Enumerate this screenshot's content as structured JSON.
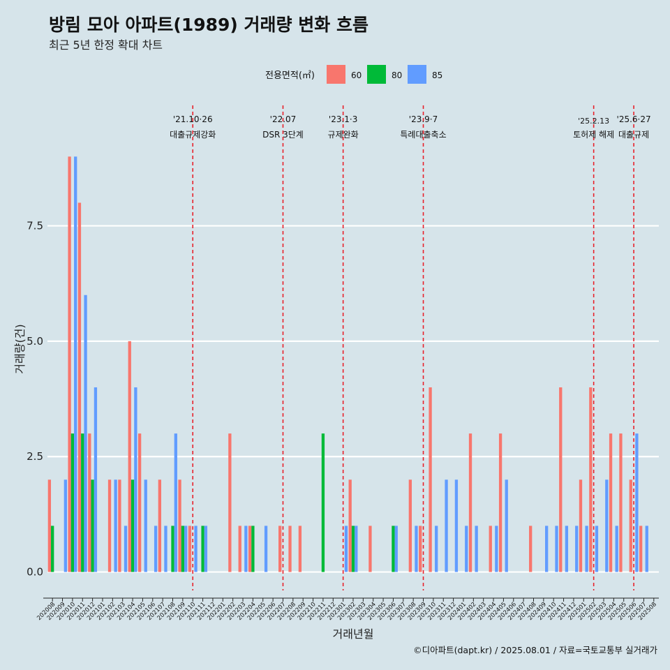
{
  "chart_data": {
    "type": "bar",
    "title": "방림 모아 아파트(1989) 거래량 변화 흐름",
    "subtitle": "최근 5년 한정 확대 차트",
    "xlabel": "거래년월",
    "ylabel": "거래량(건)",
    "ylim": [
      -0.4,
      10.2
    ],
    "yticks": [
      0.0,
      2.5,
      5.0,
      7.5
    ],
    "ytick_labels": [
      "0.0",
      "2.5",
      "5.0",
      "7.5"
    ],
    "legend": {
      "title": "전용면적(㎡)",
      "position": "top",
      "entries": [
        {
          "label": "60",
          "color": "#f8766d"
        },
        {
          "label": "80",
          "color": "#00ba38"
        },
        {
          "label": "85",
          "color": "#619cff"
        }
      ]
    },
    "categories": [
      "202008",
      "202009",
      "202010",
      "202011",
      "202012",
      "202101",
      "202102",
      "202103",
      "202104",
      "202105",
      "202106",
      "202107",
      "202108",
      "202109",
      "202110",
      "202111",
      "202112",
      "202201",
      "202202",
      "202203",
      "202204",
      "202205",
      "202206",
      "202207",
      "202208",
      "202209",
      "202210",
      "202211",
      "202212",
      "202301",
      "202302",
      "202303",
      "202304",
      "202305",
      "202306",
      "202307",
      "202308",
      "202309",
      "202310",
      "202311",
      "202312",
      "202401",
      "202402",
      "202403",
      "202404",
      "202405",
      "202406",
      "202407",
      "202408",
      "202409",
      "202410",
      "202411",
      "202412",
      "202501",
      "202502",
      "202503",
      "202504",
      "202505",
      "202506",
      "202507",
      "202508"
    ],
    "series": [
      {
        "name": "60",
        "values": [
          2,
          0,
          9,
          8,
          3,
          0,
          2,
          2,
          5,
          3,
          0,
          2,
          0,
          2,
          1,
          0,
          0,
          0,
          3,
          1,
          1,
          0,
          0,
          1,
          1,
          1,
          0,
          0,
          0,
          0,
          2,
          0,
          1,
          0,
          0,
          0,
          2,
          1,
          4,
          0,
          0,
          0,
          3,
          0,
          1,
          3,
          0,
          0,
          1,
          0,
          0,
          4,
          0,
          2,
          4,
          0,
          3,
          3,
          2,
          1,
          0
        ]
      },
      {
        "name": "80",
        "values": [
          1,
          0,
          3,
          3,
          2,
          0,
          0,
          0,
          2,
          0,
          0,
          0,
          1,
          1,
          0,
          1,
          0,
          0,
          0,
          0,
          1,
          0,
          0,
          0,
          0,
          0,
          0,
          3,
          0,
          0,
          1,
          0,
          0,
          0,
          1,
          0,
          0,
          0,
          0,
          0,
          0,
          0,
          0,
          0,
          0,
          0,
          0,
          0,
          0,
          0,
          0,
          0,
          0,
          0,
          0,
          0,
          0,
          0,
          0,
          0,
          0
        ]
      },
      {
        "name": "85",
        "values": [
          0,
          2,
          9,
          6,
          4,
          0,
          2,
          1,
          4,
          2,
          1,
          1,
          3,
          1,
          1,
          1,
          0,
          0,
          0,
          1,
          0,
          1,
          0,
          0,
          0,
          0,
          0,
          0,
          0,
          1,
          1,
          0,
          0,
          0,
          1,
          0,
          1,
          0,
          1,
          2,
          2,
          1,
          1,
          0,
          1,
          2,
          0,
          0,
          0,
          1,
          1,
          1,
          1,
          1,
          1,
          2,
          1,
          0,
          3,
          1,
          0
        ]
      }
    ],
    "events": [
      {
        "date": "202110",
        "date_label": "'21.10·26",
        "label": "대출규제강화"
      },
      {
        "date": "202207",
        "date_label": "'22.07",
        "label": "DSR 3단계"
      },
      {
        "date": "202301",
        "date_label": "'23.1·3",
        "label": "규제완화"
      },
      {
        "date": "202309",
        "date_label": "'23.9·7",
        "label": "특례대출축소"
      },
      {
        "date": "202502",
        "date_label": "'25.2.13",
        "label": "토허제 해제"
      },
      {
        "date": "202506",
        "date_label": "'25.6·27",
        "label": "대출규제"
      }
    ],
    "grid": true,
    "caption": "©디아파트(dapt.kr) / 2025.08.01 / 자료=국토교통부 실거래가"
  }
}
